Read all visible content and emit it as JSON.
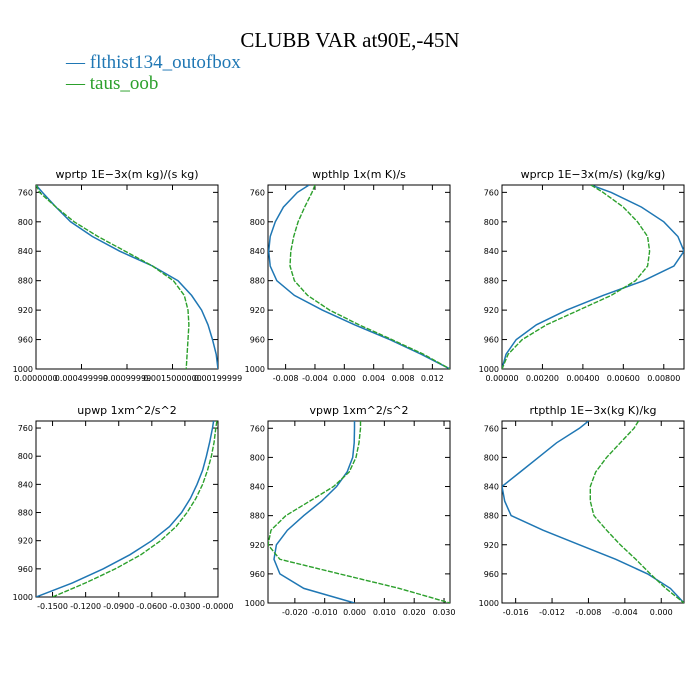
{
  "figure": {
    "title": "CLUBB VAR at90E,-45N",
    "legend": [
      {
        "name": "flthist134_outofbox",
        "color": "#1f77b4"
      },
      {
        "name": "taus_oob",
        "color": "#2ca02c"
      }
    ]
  },
  "chart_data": [
    {
      "type": "line",
      "title": "wprtp   1E−3x(m kg)/(s kg)",
      "ylim": [
        1000,
        750
      ],
      "yticks": [
        760,
        800,
        840,
        880,
        920,
        960,
        1000
      ],
      "xlim": [
        0.0,
        0.002
      ],
      "xticks": [
        0.0,
        0.0005,
        0.001,
        0.0015,
        0.002
      ],
      "xtick_labels": [
        "0.0000000",
        "0.000499999",
        "0.00099999",
        "0.0015000000",
        "0.00199999"
      ],
      "series": [
        {
          "name": "flthist134_outofbox",
          "y": [
            750,
            760,
            780,
            800,
            820,
            840,
            860,
            880,
            900,
            920,
            940,
            960,
            980,
            1000
          ],
          "x": [
            0.0,
            7e-05,
            0.00022,
            0.00038,
            0.00062,
            0.00092,
            0.00128,
            0.00156,
            0.00171,
            0.00182,
            0.00189,
            0.00194,
            0.00198,
            0.002
          ]
        },
        {
          "name": "taus_oob",
          "y": [
            750,
            760,
            780,
            800,
            820,
            840,
            860,
            880,
            900,
            920,
            940,
            960,
            980,
            1000
          ],
          "x": [
            0.0,
            4e-05,
            0.00022,
            0.00042,
            0.00068,
            0.00098,
            0.00128,
            0.00151,
            0.00163,
            0.00167,
            0.00168,
            0.00167,
            0.00166,
            0.00165
          ]
        }
      ]
    },
    {
      "type": "line",
      "title": "wpthlp   1x(m K)/s",
      "ylim": [
        1000,
        750
      ],
      "yticks": [
        760,
        800,
        840,
        880,
        920,
        960,
        1000
      ],
      "xlim": [
        -0.0104,
        0.0144
      ],
      "xticks": [
        -0.008,
        -0.004,
        0.0,
        0.004,
        0.008,
        0.012
      ],
      "xtick_labels": [
        "-0.008",
        "-0.004",
        "0.000",
        "0.004",
        "0.008",
        "0.012"
      ],
      "series": [
        {
          "name": "flthist134_outofbox",
          "y": [
            750,
            760,
            780,
            800,
            820,
            840,
            860,
            880,
            900,
            920,
            940,
            960,
            980,
            1000
          ],
          "x": [
            -0.0048,
            -0.0064,
            -0.0083,
            -0.0094,
            -0.0101,
            -0.0103,
            -0.0101,
            -0.0092,
            -0.0068,
            -0.003,
            0.0014,
            0.0062,
            0.0105,
            0.0144
          ]
        },
        {
          "name": "taus_oob",
          "y": [
            750,
            760,
            780,
            800,
            820,
            840,
            860,
            880,
            900,
            920,
            940,
            960,
            980,
            1000
          ],
          "x": [
            -0.004,
            -0.0044,
            -0.0054,
            -0.0063,
            -0.0069,
            -0.0073,
            -0.0074,
            -0.0068,
            -0.005,
            -0.002,
            0.002,
            0.0065,
            0.0108,
            0.0144
          ]
        }
      ]
    },
    {
      "type": "line",
      "title": "wprcp   1E−3x(m/s) (kg/kg)",
      "ylim": [
        1000,
        750
      ],
      "yticks": [
        760,
        800,
        840,
        880,
        920,
        960,
        1000
      ],
      "xlim": [
        0.0,
        0.009
      ],
      "xticks": [
        0.0,
        0.002,
        0.004,
        0.006,
        0.008
      ],
      "xtick_labels": [
        "0.00000",
        "0.00200",
        "0.00400",
        "0.00600",
        "0.00800"
      ],
      "series": [
        {
          "name": "flthist134_outofbox",
          "y": [
            750,
            760,
            780,
            800,
            820,
            840,
            860,
            880,
            900,
            920,
            940,
            960,
            980,
            1000
          ],
          "x": [
            0.0044,
            0.0054,
            0.0069,
            0.008,
            0.0087,
            0.009,
            0.0085,
            0.007,
            0.005,
            0.0032,
            0.0017,
            0.0007,
            0.0002,
            0.0
          ]
        },
        {
          "name": "taus_oob",
          "y": [
            750,
            760,
            780,
            800,
            820,
            840,
            860,
            880,
            900,
            920,
            940,
            960,
            980,
            1000
          ],
          "x": [
            0.0044,
            0.005,
            0.006,
            0.0067,
            0.0072,
            0.0073,
            0.0072,
            0.0066,
            0.0054,
            0.0038,
            0.0022,
            0.001,
            0.0003,
            0.0
          ]
        }
      ]
    },
    {
      "type": "line",
      "title": "upwp   1xm^2/s^2",
      "ylim": [
        1000,
        750
      ],
      "yticks": [
        760,
        800,
        840,
        880,
        920,
        960,
        1000
      ],
      "xlim": [
        -0.165,
        0.0
      ],
      "xticks": [
        -0.15,
        -0.12,
        -0.09,
        -0.06,
        -0.03,
        0.0
      ],
      "xtick_labels": [
        "-0.1500",
        "-0.1200",
        "-0.0900",
        "-0.0600",
        "-0.0300",
        "-0.0000"
      ],
      "series": [
        {
          "name": "flthist134_outofbox",
          "y": [
            750,
            760,
            780,
            800,
            820,
            840,
            860,
            880,
            900,
            920,
            940,
            960,
            980,
            1000
          ],
          "x": [
            -0.004,
            -0.005,
            -0.0075,
            -0.0105,
            -0.014,
            -0.019,
            -0.025,
            -0.033,
            -0.044,
            -0.06,
            -0.08,
            -0.104,
            -0.132,
            -0.165
          ]
        },
        {
          "name": "taus_oob",
          "y": [
            750,
            760,
            780,
            800,
            820,
            840,
            860,
            880,
            900,
            920,
            940,
            960,
            980,
            1000
          ],
          "x": [
            -0.001,
            -0.002,
            -0.0035,
            -0.006,
            -0.0095,
            -0.014,
            -0.02,
            -0.028,
            -0.038,
            -0.052,
            -0.07,
            -0.093,
            -0.12,
            -0.15
          ]
        }
      ]
    },
    {
      "type": "line",
      "title": "vpwp   1xm^2/s^2",
      "ylim": [
        1000,
        750
      ],
      "yticks": [
        760,
        800,
        840,
        880,
        920,
        960,
        1000
      ],
      "xlim": [
        -0.029,
        0.032
      ],
      "xticks": [
        -0.02,
        -0.01,
        0.0,
        0.01,
        0.02,
        0.03
      ],
      "xtick_labels": [
        "-0.020",
        "-0.010",
        "0.000",
        "0.010",
        "0.020",
        "0.030"
      ],
      "series": [
        {
          "name": "flthist134_outofbox",
          "y": [
            750,
            760,
            780,
            800,
            820,
            840,
            860,
            880,
            900,
            920,
            940,
            960,
            980,
            1000
          ],
          "x": [
            0.0,
            0.0,
            -0.0001,
            -0.0006,
            -0.0025,
            -0.006,
            -0.011,
            -0.017,
            -0.0225,
            -0.0262,
            -0.027,
            -0.025,
            -0.017,
            0.0
          ]
        },
        {
          "name": "taus_oob",
          "y": [
            750,
            760,
            780,
            800,
            820,
            840,
            860,
            880,
            900,
            920,
            940,
            960,
            980,
            1000
          ],
          "x": [
            0.002,
            0.002,
            0.0015,
            0.0005,
            -0.0018,
            -0.007,
            -0.015,
            -0.023,
            -0.028,
            -0.029,
            -0.025,
            -0.005,
            0.015,
            0.032
          ]
        }
      ]
    },
    {
      "type": "line",
      "title": "rtpthlp   1E−3x(kg K)/kg",
      "ylim": [
        1000,
        750
      ],
      "yticks": [
        760,
        800,
        840,
        880,
        920,
        960,
        1000
      ],
      "xlim": [
        -0.0175,
        0.0025
      ],
      "xticks": [
        -0.016,
        -0.012,
        -0.008,
        -0.004,
        0.0
      ],
      "xtick_labels": [
        "-0.016",
        "-0.012",
        "-0.008",
        "-0.004",
        "0.000"
      ],
      "series": [
        {
          "name": "flthist134_outofbox",
          "y": [
            750,
            760,
            780,
            800,
            820,
            840,
            860,
            880,
            900,
            920,
            940,
            960,
            980,
            1000
          ],
          "x": [
            -0.008,
            -0.009,
            -0.0115,
            -0.0135,
            -0.0155,
            -0.0175,
            -0.0172,
            -0.0165,
            -0.013,
            -0.009,
            -0.005,
            -0.0015,
            0.001,
            0.0025
          ]
        },
        {
          "name": "taus_oob",
          "y": [
            750,
            760,
            780,
            800,
            820,
            840,
            860,
            880,
            900,
            920,
            940,
            960,
            980,
            1000
          ],
          "x": [
            -0.0025,
            -0.003,
            -0.0045,
            -0.006,
            -0.0072,
            -0.0078,
            -0.0078,
            -0.0074,
            -0.006,
            -0.0045,
            -0.0028,
            -0.0012,
            0.0005,
            0.0025
          ]
        }
      ]
    }
  ]
}
